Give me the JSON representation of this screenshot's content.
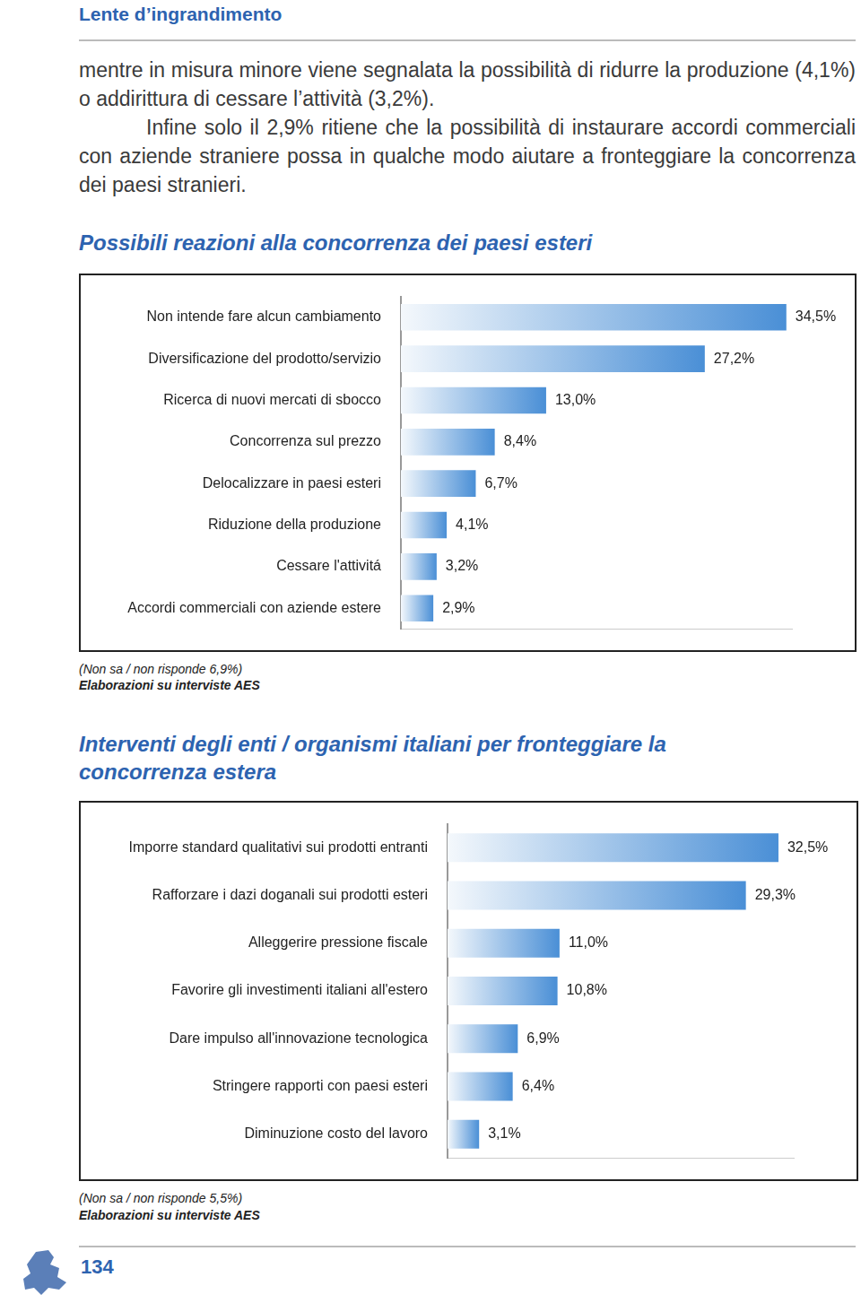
{
  "header": "Lente d’ingrandimento",
  "paragraphs": [
    "mentre in misura minore viene segnalata la possibilità di ridurre la produzione (4,1%) o addirittura di cessare l’attività (3,2%).",
    "Infine solo il 2,9% ritiene che la possibilità di instaurare accordi commerciali con aziende straniere possa in qualche modo aiutare a fronteggiare la concorrenza dei paesi stranieri."
  ],
  "chart_data": [
    {
      "type": "bar",
      "orientation": "horizontal",
      "title": "Possibili reazioni alla concorrenza dei paesi esteri",
      "categories": [
        "Non intende fare alcun cambiamento",
        "Diversificazione del prodotto/servizio",
        "Ricerca di nuovi mercati di sbocco",
        "Concorrenza sul prezzo",
        "Delocalizzare in paesi esteri",
        "Riduzione della produzione",
        "Cessare l'attivitá",
        "Accordi commerciali con aziende estere"
      ],
      "values": [
        34.5,
        27.2,
        13.0,
        8.4,
        6.7,
        4.1,
        3.2,
        2.9
      ],
      "value_labels": [
        "34,5%",
        "27,2%",
        "13,0%",
        "8,4%",
        "6,7%",
        "4,1%",
        "3,2%",
        "2,9%"
      ],
      "color": "#4a8fd6",
      "xlim": [
        0,
        35
      ],
      "grid": false,
      "data_labels": true,
      "tick_labels": "y",
      "annotations": [
        "(Non sa / non risponde 6,9%)",
        "Elaborazioni su interviste AES"
      ]
    },
    {
      "type": "bar",
      "orientation": "horizontal",
      "title": "Interventi degli enti / organismi italiani per fronteggiare la concorrenza estera",
      "categories": [
        "Imporre standard qualitativi sui prodotti entranti",
        "Rafforzare i dazi doganali sui prodotti esteri",
        "Alleggerire pressione fiscale",
        "Favorire gli investimenti italiani all'estero",
        "Dare impulso all'innovazione tecnologica",
        "Stringere rapporti con paesi esteri",
        "Diminuzione costo del lavoro"
      ],
      "values": [
        32.5,
        29.3,
        11.0,
        10.8,
        6.9,
        6.4,
        3.1
      ],
      "value_labels": [
        "32,5%",
        "29,3%",
        "11,0%",
        "10,8%",
        "6,9%",
        "6,4%",
        "3,1%"
      ],
      "color": "#4a8fd6",
      "xlim": [
        0,
        34
      ],
      "grid": false,
      "data_labels": true,
      "tick_labels": "y",
      "annotations": [
        "(Non sa / non risponde 5,5%)",
        "Elaborazioni su interviste AES"
      ]
    }
  ],
  "page_number": "134"
}
